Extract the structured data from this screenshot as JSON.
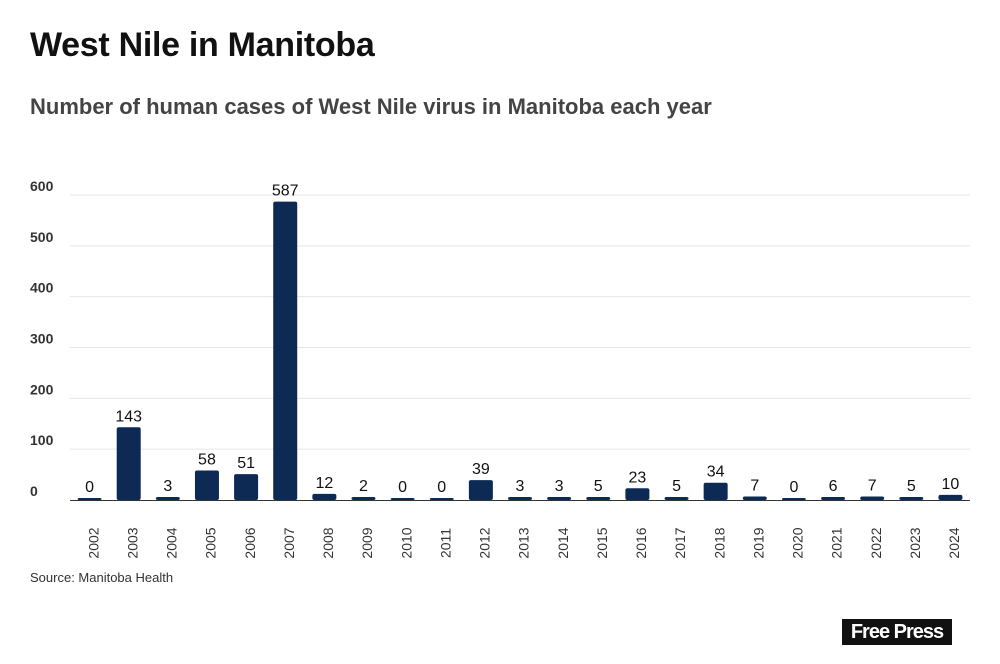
{
  "chart_data": {
    "type": "bar",
    "title": "West Nile in Manitoba",
    "subtitle": "Number of human cases of West Nile virus in Manitoba each year",
    "xlabel": "",
    "ylabel": "",
    "ylim": [
      0,
      600
    ],
    "yticks": [
      0,
      100,
      200,
      300,
      400,
      500,
      600
    ],
    "grid": true,
    "bar_color": "#0d2a55",
    "categories": [
      "2002",
      "2003",
      "2004",
      "2005",
      "2006",
      "2007",
      "2008",
      "2009",
      "2010",
      "2011",
      "2012",
      "2013",
      "2014",
      "2015",
      "2016",
      "2017",
      "2018",
      "2019",
      "2020",
      "2021",
      "2022",
      "2023",
      "2024"
    ],
    "values": [
      0,
      143,
      3,
      58,
      51,
      587,
      12,
      2,
      0,
      0,
      39,
      3,
      3,
      5,
      23,
      5,
      34,
      7,
      0,
      6,
      7,
      5,
      10
    ]
  },
  "source": "Source: Manitoba Health",
  "logo_text": "Free Press"
}
